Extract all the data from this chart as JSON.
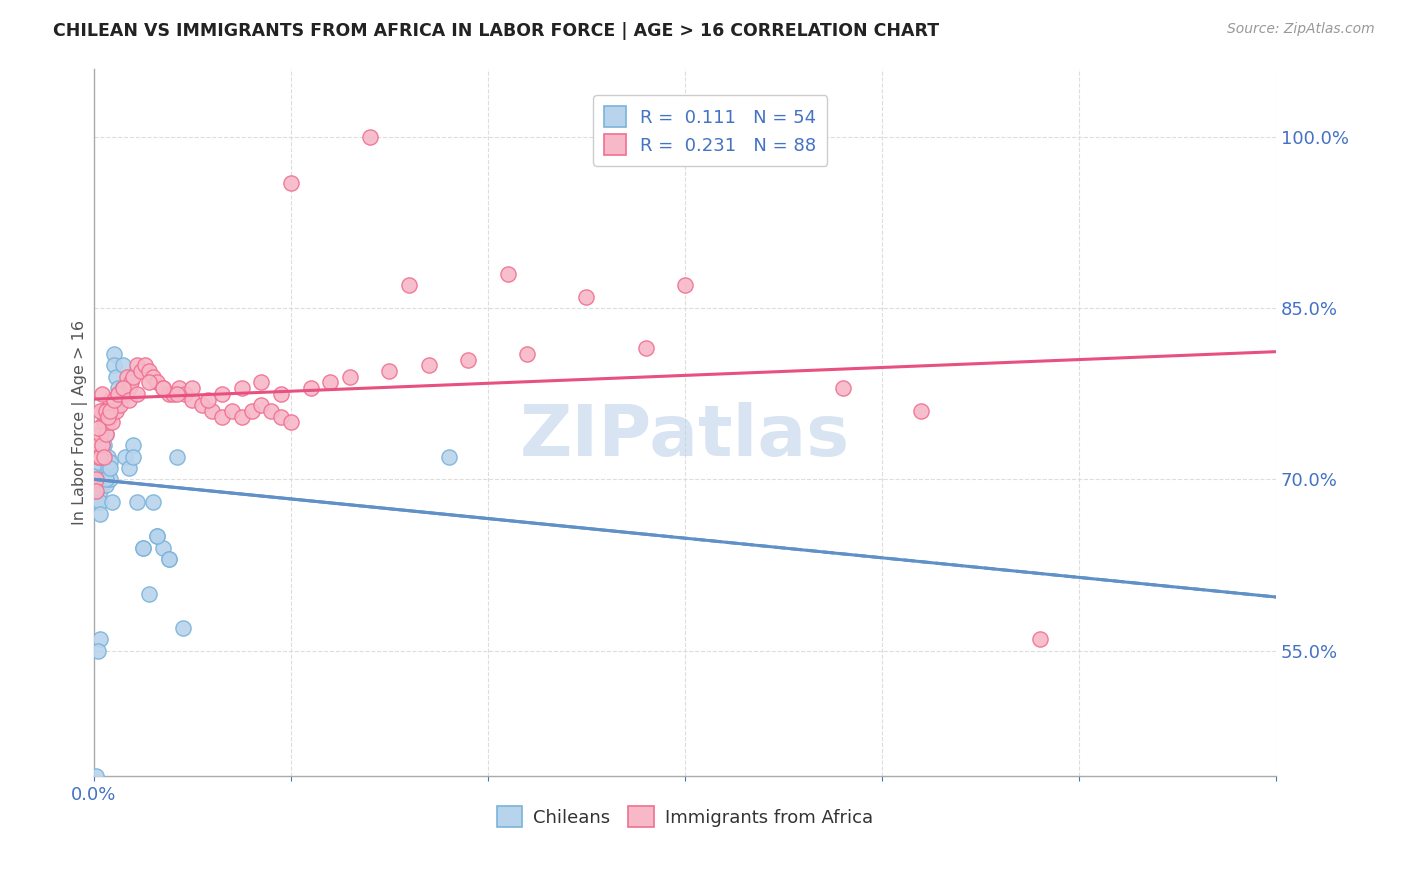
{
  "title": "CHILEAN VS IMMIGRANTS FROM AFRICA IN LABOR FORCE | AGE > 16 CORRELATION CHART",
  "source": "Source: ZipAtlas.com",
  "ylabel": "In Labor Force | Age > 16",
  "xlim": [
    0.0,
    0.6
  ],
  "ylim": [
    0.44,
    1.06
  ],
  "ytick_vals": [
    0.55,
    0.7,
    0.85,
    1.0
  ],
  "ytick_labels": [
    "55.0%",
    "70.0%",
    "85.0%",
    "100.0%"
  ],
  "xtick_vals": [
    0.0,
    0.1,
    0.2,
    0.3,
    0.4,
    0.5,
    0.6
  ],
  "xtick_labels_show": {
    "0.0": "0.0%"
  },
  "r_chilean": 0.111,
  "n_chilean": 54,
  "r_africa": 0.231,
  "n_africa": 88,
  "color_chilean_fill": "#b8d4ed",
  "color_chilean_edge": "#7ab3d9",
  "color_africa_fill": "#f7b8c8",
  "color_africa_edge": "#f07090",
  "color_chilean_line": "#6090c8",
  "color_africa_line": "#e85080",
  "color_text_blue": "#4472c4",
  "color_grid": "#dddddd",
  "bg_color": "#ffffff",
  "watermark": "ZIPatlas",
  "chilean_x": [
    0.001,
    0.001,
    0.001,
    0.002,
    0.002,
    0.002,
    0.003,
    0.003,
    0.003,
    0.004,
    0.004,
    0.005,
    0.005,
    0.005,
    0.006,
    0.006,
    0.007,
    0.007,
    0.008,
    0.008,
    0.009,
    0.01,
    0.01,
    0.011,
    0.012,
    0.013,
    0.015,
    0.016,
    0.018,
    0.02,
    0.022,
    0.025,
    0.028,
    0.03,
    0.032,
    0.035,
    0.038,
    0.042,
    0.005,
    0.003,
    0.004,
    0.006,
    0.008,
    0.012,
    0.015,
    0.02,
    0.025,
    0.032,
    0.038,
    0.045,
    0.003,
    0.002,
    0.18,
    0.001
  ],
  "chilean_y": [
    0.695,
    0.72,
    0.68,
    0.7,
    0.71,
    0.715,
    0.7,
    0.69,
    0.68,
    0.72,
    0.695,
    0.76,
    0.75,
    0.73,
    0.74,
    0.695,
    0.72,
    0.71,
    0.715,
    0.7,
    0.68,
    0.81,
    0.8,
    0.79,
    0.78,
    0.77,
    0.8,
    0.72,
    0.71,
    0.73,
    0.68,
    0.64,
    0.6,
    0.68,
    0.65,
    0.64,
    0.63,
    0.72,
    0.76,
    0.67,
    0.73,
    0.7,
    0.71,
    0.77,
    0.78,
    0.72,
    0.64,
    0.65,
    0.63,
    0.57,
    0.56,
    0.55,
    0.72,
    0.44
  ],
  "africa_x": [
    0.001,
    0.001,
    0.002,
    0.002,
    0.003,
    0.003,
    0.004,
    0.004,
    0.005,
    0.005,
    0.006,
    0.006,
    0.007,
    0.007,
    0.008,
    0.008,
    0.009,
    0.01,
    0.011,
    0.012,
    0.013,
    0.014,
    0.015,
    0.016,
    0.017,
    0.018,
    0.019,
    0.02,
    0.022,
    0.024,
    0.026,
    0.028,
    0.03,
    0.032,
    0.035,
    0.038,
    0.04,
    0.043,
    0.046,
    0.05,
    0.055,
    0.06,
    0.065,
    0.07,
    0.075,
    0.08,
    0.085,
    0.09,
    0.095,
    0.1,
    0.005,
    0.004,
    0.003,
    0.002,
    0.006,
    0.007,
    0.008,
    0.01,
    0.012,
    0.015,
    0.018,
    0.022,
    0.028,
    0.035,
    0.042,
    0.05,
    0.058,
    0.065,
    0.075,
    0.085,
    0.095,
    0.11,
    0.12,
    0.13,
    0.15,
    0.17,
    0.19,
    0.22,
    0.28,
    0.38,
    0.1,
    0.16,
    0.21,
    0.14,
    0.25,
    0.3,
    0.42,
    0.48
  ],
  "africa_y": [
    0.7,
    0.69,
    0.73,
    0.72,
    0.74,
    0.72,
    0.76,
    0.73,
    0.75,
    0.72,
    0.755,
    0.74,
    0.76,
    0.75,
    0.77,
    0.755,
    0.75,
    0.77,
    0.76,
    0.775,
    0.765,
    0.775,
    0.78,
    0.775,
    0.79,
    0.78,
    0.785,
    0.79,
    0.8,
    0.795,
    0.8,
    0.795,
    0.79,
    0.785,
    0.78,
    0.775,
    0.775,
    0.78,
    0.775,
    0.77,
    0.765,
    0.76,
    0.755,
    0.76,
    0.755,
    0.76,
    0.765,
    0.76,
    0.755,
    0.75,
    0.76,
    0.775,
    0.76,
    0.745,
    0.76,
    0.755,
    0.76,
    0.77,
    0.775,
    0.78,
    0.77,
    0.775,
    0.785,
    0.78,
    0.775,
    0.78,
    0.77,
    0.775,
    0.78,
    0.785,
    0.775,
    0.78,
    0.785,
    0.79,
    0.795,
    0.8,
    0.805,
    0.81,
    0.815,
    0.78,
    0.96,
    0.87,
    0.88,
    1.0,
    0.86,
    0.87,
    0.76,
    0.56
  ]
}
